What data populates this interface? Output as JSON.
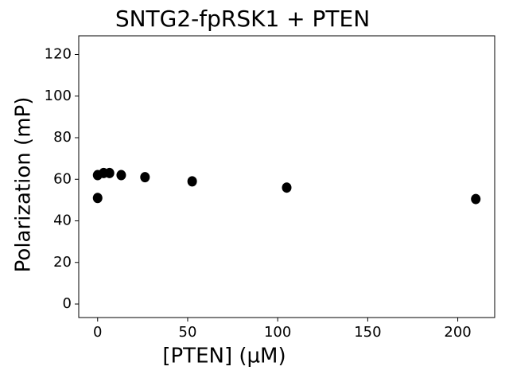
{
  "chart_data": {
    "type": "scatter",
    "title": "SNTG2-fpRSK1 + PTEN",
    "x_label": "[PTEN] (µM)",
    "y_label": "Polarization (mP)",
    "series": [
      {
        "name": "PTEN",
        "color": "#000000",
        "x": [
          0,
          0,
          3.3,
          6.6,
          13.1,
          26.3,
          52.5,
          105,
          210
        ],
        "values": [
          62,
          51,
          63,
          63,
          62,
          61,
          59,
          56,
          50.5
        ]
      }
    ],
    "xlim": [
      -10.5,
      220.5
    ],
    "xticks": [
      0,
      50,
      100,
      150,
      200
    ],
    "ylim": [
      -6.5,
      129
    ],
    "yticks": [
      0,
      20,
      40,
      60,
      80,
      100,
      120
    ],
    "grid": false
  }
}
